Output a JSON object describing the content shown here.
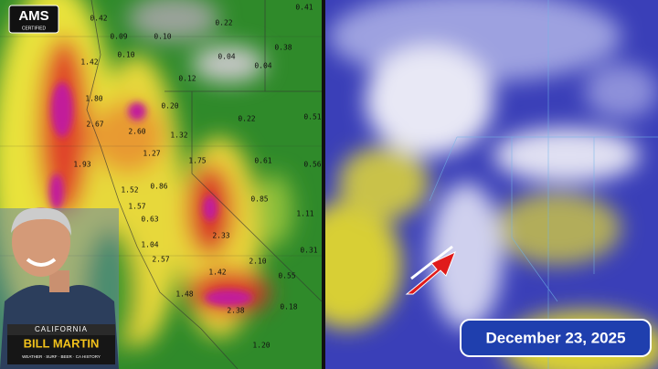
{
  "logo": {
    "title": "AMS",
    "subtitle": "CERTIFIED"
  },
  "precip_map": {
    "labels": [
      "0.42",
      "0.09",
      "0.10",
      "0.22",
      "0.41",
      "0.10",
      "0.38",
      "0.04",
      "0.04",
      "0.12",
      "1.42",
      "0.20",
      "0.22",
      "0.51",
      "1.80",
      "2.67",
      "2.60",
      "1.32",
      "0.61",
      "1.27",
      "0.56",
      "1.93",
      "1.75",
      "1.52",
      "0.86",
      "0.85",
      "1.57",
      "0.63",
      "1.11",
      "2.33",
      "1.04",
      "0.31",
      "2.57",
      "2.10",
      "1.42",
      "0.55",
      "1.48",
      "2.38",
      "0.18",
      "1.20"
    ]
  },
  "presenter": {
    "region": "CALIFORNIA",
    "name": "BILL MARTIN",
    "tagline": "WEATHER · SURF · BEER · CA HISTORY"
  },
  "satellite": {
    "date": "December 23, 2025"
  }
}
